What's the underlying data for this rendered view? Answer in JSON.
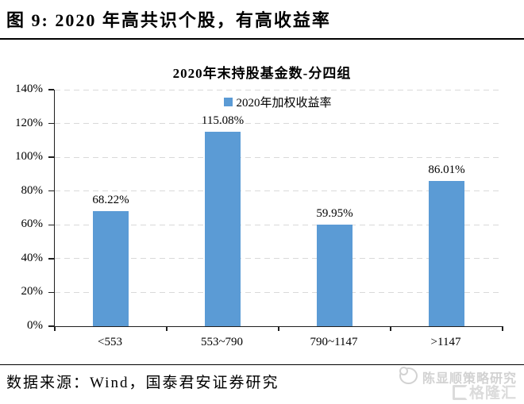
{
  "figure": {
    "title": "图 9: 2020 年高共识个股，有高收益率"
  },
  "chart_data": {
    "type": "bar",
    "title": "2020年末持股基金数-分四组",
    "legend_label": "2020年加权收益率",
    "legend_position": "top-center",
    "categories": [
      "<553",
      "553~790",
      "790~1147",
      ">1147"
    ],
    "series": [
      {
        "name": "2020年加权收益率",
        "values": [
          68.22,
          115.08,
          59.95,
          86.01
        ]
      }
    ],
    "data_labels": [
      "68.22%",
      "115.08%",
      "59.95%",
      "86.01%"
    ],
    "xlabel": "",
    "ylabel": "",
    "ylim": [
      0,
      140
    ],
    "ytick_step": 20,
    "ytick_labels": [
      "0%",
      "20%",
      "40%",
      "60%",
      "80%",
      "100%",
      "120%",
      "140%"
    ],
    "grid": "horizontal-dashed",
    "colors": {
      "bar": "#5B9BD5",
      "gridline": "#D9D9D9",
      "axis": "#1F1F1F"
    }
  },
  "footer": {
    "source": "数据来源：Wind，国泰君安证券研究",
    "watermark_author": "陈显顺策略研究",
    "watermark_logo": "格隆汇"
  }
}
